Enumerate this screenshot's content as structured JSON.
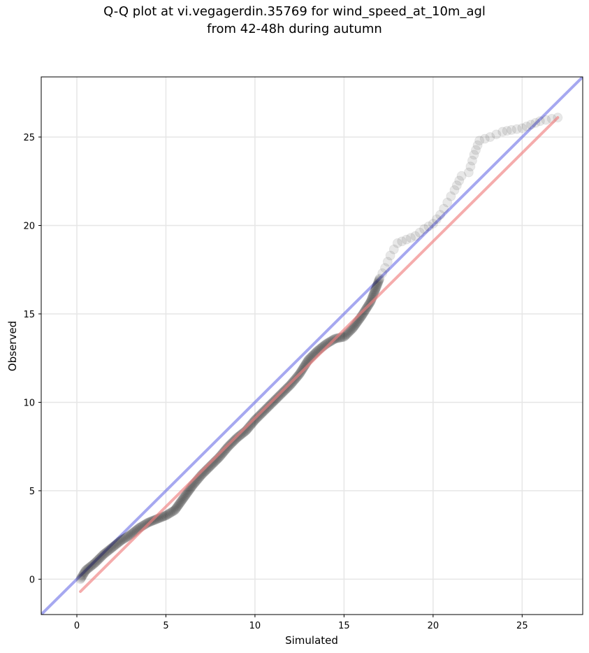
{
  "chart_data": {
    "type": "scatter",
    "title_line1": "Q-Q plot at vi.vegagerdin.35769 for wind_speed_at_10m_agl",
    "title_line2": "from 42-48h during autumn",
    "xlabel": "Simulated",
    "ylabel": "Observed",
    "xlim": [
      -2.0,
      28.4
    ],
    "ylim": [
      -2.0,
      28.4
    ],
    "xticks": [
      0,
      5,
      10,
      15,
      20,
      25
    ],
    "yticks": [
      0,
      5,
      10,
      15,
      20,
      25
    ],
    "grid": true,
    "colors": {
      "points": "#000000",
      "identity_line": "#6b6ee6",
      "fit_line": "#f08080"
    },
    "identity_line": {
      "x": [
        -2.0,
        28.4
      ],
      "y": [
        -2.0,
        28.4
      ]
    },
    "fit_line": {
      "x": [
        0.2,
        27.0
      ],
      "y": [
        -0.7,
        26.1
      ]
    },
    "quantile_anchors": {
      "x": [
        0.2,
        0.5,
        1.0,
        1.5,
        2.0,
        2.5,
        3.0,
        3.5,
        4.0,
        4.5,
        5.0,
        5.5,
        6.0,
        6.5,
        7.0,
        7.5,
        8.0,
        8.5,
        9.0,
        9.5,
        10.0,
        10.5,
        11.0,
        11.5,
        12.0,
        12.5,
        13.0,
        13.5,
        14.0,
        14.5,
        15.0,
        15.5,
        16.0,
        16.5,
        17.0,
        17.3,
        17.6,
        18.0,
        18.5,
        19.0,
        19.5,
        20.0,
        20.4,
        20.8,
        21.2,
        21.6,
        22.0,
        22.3,
        22.6,
        23.2,
        23.9,
        24.4,
        25.0,
        25.5,
        26.0,
        27.0
      ],
      "y": [
        0.0,
        0.5,
        0.9,
        1.4,
        1.8,
        2.2,
        2.5,
        2.9,
        3.2,
        3.4,
        3.6,
        3.9,
        4.6,
        5.3,
        5.9,
        6.4,
        6.9,
        7.5,
        8.0,
        8.4,
        9.0,
        9.5,
        10.0,
        10.5,
        11.0,
        11.6,
        12.4,
        12.9,
        13.3,
        13.6,
        13.7,
        14.2,
        14.9,
        15.7,
        17.0,
        17.6,
        18.3,
        19.0,
        19.2,
        19.4,
        19.8,
        20.1,
        20.6,
        21.3,
        22.0,
        22.8,
        23.0,
        24.0,
        24.8,
        25.0,
        25.3,
        25.4,
        25.5,
        25.7,
        25.9,
        26.1
      ]
    }
  }
}
